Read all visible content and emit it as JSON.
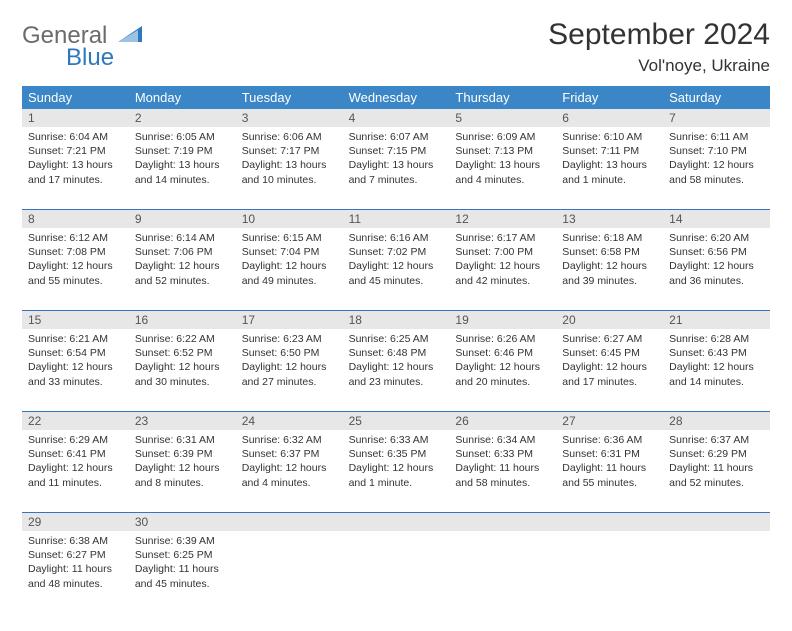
{
  "brand": {
    "part1": "General",
    "part2": "Blue"
  },
  "title": "September 2024",
  "location": "Vol'noye, Ukraine",
  "colors": {
    "header_bg": "#3b86c6",
    "daynum_bg": "#e7e7e7",
    "rule": "#2f78bd",
    "text": "#333333",
    "logo_gray": "#6b6b6b",
    "logo_blue": "#2f78bd"
  },
  "dow": [
    "Sunday",
    "Monday",
    "Tuesday",
    "Wednesday",
    "Thursday",
    "Friday",
    "Saturday"
  ],
  "weeks": [
    {
      "nums": [
        "1",
        "2",
        "3",
        "4",
        "5",
        "6",
        "7"
      ],
      "cells": [
        {
          "sunrise": "Sunrise: 6:04 AM",
          "sunset": "Sunset: 7:21 PM",
          "day1": "Daylight: 13 hours",
          "day2": "and 17 minutes."
        },
        {
          "sunrise": "Sunrise: 6:05 AM",
          "sunset": "Sunset: 7:19 PM",
          "day1": "Daylight: 13 hours",
          "day2": "and 14 minutes."
        },
        {
          "sunrise": "Sunrise: 6:06 AM",
          "sunset": "Sunset: 7:17 PM",
          "day1": "Daylight: 13 hours",
          "day2": "and 10 minutes."
        },
        {
          "sunrise": "Sunrise: 6:07 AM",
          "sunset": "Sunset: 7:15 PM",
          "day1": "Daylight: 13 hours",
          "day2": "and 7 minutes."
        },
        {
          "sunrise": "Sunrise: 6:09 AM",
          "sunset": "Sunset: 7:13 PM",
          "day1": "Daylight: 13 hours",
          "day2": "and 4 minutes."
        },
        {
          "sunrise": "Sunrise: 6:10 AM",
          "sunset": "Sunset: 7:11 PM",
          "day1": "Daylight: 13 hours",
          "day2": "and 1 minute."
        },
        {
          "sunrise": "Sunrise: 6:11 AM",
          "sunset": "Sunset: 7:10 PM",
          "day1": "Daylight: 12 hours",
          "day2": "and 58 minutes."
        }
      ]
    },
    {
      "nums": [
        "8",
        "9",
        "10",
        "11",
        "12",
        "13",
        "14"
      ],
      "cells": [
        {
          "sunrise": "Sunrise: 6:12 AM",
          "sunset": "Sunset: 7:08 PM",
          "day1": "Daylight: 12 hours",
          "day2": "and 55 minutes."
        },
        {
          "sunrise": "Sunrise: 6:14 AM",
          "sunset": "Sunset: 7:06 PM",
          "day1": "Daylight: 12 hours",
          "day2": "and 52 minutes."
        },
        {
          "sunrise": "Sunrise: 6:15 AM",
          "sunset": "Sunset: 7:04 PM",
          "day1": "Daylight: 12 hours",
          "day2": "and 49 minutes."
        },
        {
          "sunrise": "Sunrise: 6:16 AM",
          "sunset": "Sunset: 7:02 PM",
          "day1": "Daylight: 12 hours",
          "day2": "and 45 minutes."
        },
        {
          "sunrise": "Sunrise: 6:17 AM",
          "sunset": "Sunset: 7:00 PM",
          "day1": "Daylight: 12 hours",
          "day2": "and 42 minutes."
        },
        {
          "sunrise": "Sunrise: 6:18 AM",
          "sunset": "Sunset: 6:58 PM",
          "day1": "Daylight: 12 hours",
          "day2": "and 39 minutes."
        },
        {
          "sunrise": "Sunrise: 6:20 AM",
          "sunset": "Sunset: 6:56 PM",
          "day1": "Daylight: 12 hours",
          "day2": "and 36 minutes."
        }
      ]
    },
    {
      "nums": [
        "15",
        "16",
        "17",
        "18",
        "19",
        "20",
        "21"
      ],
      "cells": [
        {
          "sunrise": "Sunrise: 6:21 AM",
          "sunset": "Sunset: 6:54 PM",
          "day1": "Daylight: 12 hours",
          "day2": "and 33 minutes."
        },
        {
          "sunrise": "Sunrise: 6:22 AM",
          "sunset": "Sunset: 6:52 PM",
          "day1": "Daylight: 12 hours",
          "day2": "and 30 minutes."
        },
        {
          "sunrise": "Sunrise: 6:23 AM",
          "sunset": "Sunset: 6:50 PM",
          "day1": "Daylight: 12 hours",
          "day2": "and 27 minutes."
        },
        {
          "sunrise": "Sunrise: 6:25 AM",
          "sunset": "Sunset: 6:48 PM",
          "day1": "Daylight: 12 hours",
          "day2": "and 23 minutes."
        },
        {
          "sunrise": "Sunrise: 6:26 AM",
          "sunset": "Sunset: 6:46 PM",
          "day1": "Daylight: 12 hours",
          "day2": "and 20 minutes."
        },
        {
          "sunrise": "Sunrise: 6:27 AM",
          "sunset": "Sunset: 6:45 PM",
          "day1": "Daylight: 12 hours",
          "day2": "and 17 minutes."
        },
        {
          "sunrise": "Sunrise: 6:28 AM",
          "sunset": "Sunset: 6:43 PM",
          "day1": "Daylight: 12 hours",
          "day2": "and 14 minutes."
        }
      ]
    },
    {
      "nums": [
        "22",
        "23",
        "24",
        "25",
        "26",
        "27",
        "28"
      ],
      "cells": [
        {
          "sunrise": "Sunrise: 6:29 AM",
          "sunset": "Sunset: 6:41 PM",
          "day1": "Daylight: 12 hours",
          "day2": "and 11 minutes."
        },
        {
          "sunrise": "Sunrise: 6:31 AM",
          "sunset": "Sunset: 6:39 PM",
          "day1": "Daylight: 12 hours",
          "day2": "and 8 minutes."
        },
        {
          "sunrise": "Sunrise: 6:32 AM",
          "sunset": "Sunset: 6:37 PM",
          "day1": "Daylight: 12 hours",
          "day2": "and 4 minutes."
        },
        {
          "sunrise": "Sunrise: 6:33 AM",
          "sunset": "Sunset: 6:35 PM",
          "day1": "Daylight: 12 hours",
          "day2": "and 1 minute."
        },
        {
          "sunrise": "Sunrise: 6:34 AM",
          "sunset": "Sunset: 6:33 PM",
          "day1": "Daylight: 11 hours",
          "day2": "and 58 minutes."
        },
        {
          "sunrise": "Sunrise: 6:36 AM",
          "sunset": "Sunset: 6:31 PM",
          "day1": "Daylight: 11 hours",
          "day2": "and 55 minutes."
        },
        {
          "sunrise": "Sunrise: 6:37 AM",
          "sunset": "Sunset: 6:29 PM",
          "day1": "Daylight: 11 hours",
          "day2": "and 52 minutes."
        }
      ]
    },
    {
      "nums": [
        "29",
        "30",
        "",
        "",
        "",
        "",
        ""
      ],
      "cells": [
        {
          "sunrise": "Sunrise: 6:38 AM",
          "sunset": "Sunset: 6:27 PM",
          "day1": "Daylight: 11 hours",
          "day2": "and 48 minutes."
        },
        {
          "sunrise": "Sunrise: 6:39 AM",
          "sunset": "Sunset: 6:25 PM",
          "day1": "Daylight: 11 hours",
          "day2": "and 45 minutes."
        },
        null,
        null,
        null,
        null,
        null
      ]
    }
  ]
}
